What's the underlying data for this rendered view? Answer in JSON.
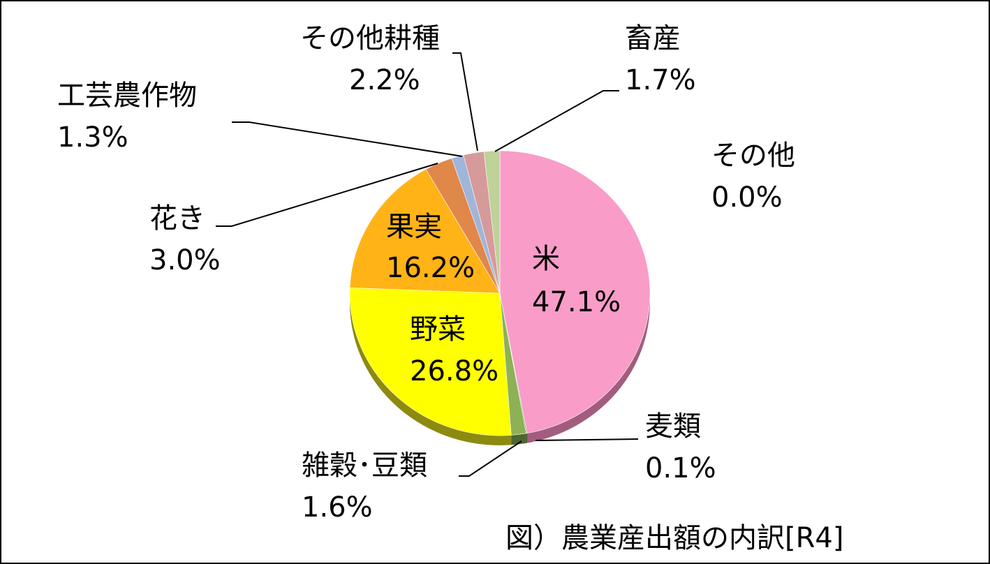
{
  "chart_data": {
    "type": "pie",
    "caption": "図）農業産出額の内訳[R4]",
    "slices": [
      {
        "name": "米",
        "value": 47.1,
        "label": "47.1%",
        "color": "#f99cc8",
        "side": "#a25d7e"
      },
      {
        "name": "麦類",
        "value": 0.1,
        "label": "0.1%",
        "color": "#76923c",
        "side": "#3f5020"
      },
      {
        "name": "雑穀･豆類",
        "value": 1.6,
        "label": "1.6%",
        "color": "#8db255",
        "side": "#4e6630"
      },
      {
        "name": "野菜",
        "value": 26.8,
        "label": "26.8%",
        "color": "#ffff00",
        "side": "#8d8a10"
      },
      {
        "name": "果実",
        "value": 16.2,
        "label": "16.2%",
        "color": "#ffb316",
        "side": "#a06d00"
      },
      {
        "name": "花き",
        "value": 3.0,
        "label": "3.0%",
        "color": "#e0874a",
        "side": "#8a4e22"
      },
      {
        "name": "工芸農作物",
        "value": 1.3,
        "label": "1.3%",
        "color": "#9fb5d9",
        "side": "#5a6f94"
      },
      {
        "name": "その他耕種",
        "value": 2.2,
        "label": "2.2%",
        "color": "#d69a9a",
        "side": "#8c5555"
      },
      {
        "name": "畜産",
        "value": 1.7,
        "label": "1.7%",
        "color": "#bed29a",
        "side": "#718358"
      },
      {
        "name": "その他",
        "value": 0.0,
        "label": "0.0%",
        "color": "#cccccc",
        "side": "#888888"
      }
    ]
  }
}
